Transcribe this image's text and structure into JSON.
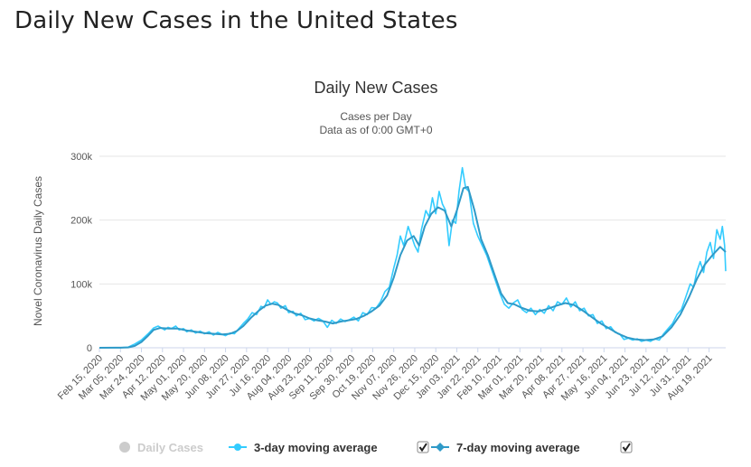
{
  "page": {
    "heading": "Daily New Cases in the United States"
  },
  "chart_data": {
    "type": "line",
    "title": "Daily New Cases",
    "subtitle_line1": "Cases per Day",
    "subtitle_line2": "Data as of 0:00 GMT+0",
    "ylabel": "Novel Coronavirus Daily Cases",
    "xlabel": "",
    "ylim": [
      0,
      300000
    ],
    "yticks": [
      0,
      100000,
      200000,
      300000
    ],
    "ytick_labels": [
      "0",
      "100k",
      "200k",
      "300k"
    ],
    "x_range": [
      "2020-02-15",
      "2021-09-03"
    ],
    "xtick_labels": [
      "Feb 15, 2020",
      "Mar 05, 2020",
      "Mar 24, 2020",
      "Apr 12, 2020",
      "May 01, 2020",
      "May 20, 2020",
      "Jun 08, 2020",
      "Jun 27, 2020",
      "Jul 16, 2020",
      "Aug 04, 2020",
      "Aug 23, 2020",
      "Sep 11, 2020",
      "Sep 30, 2020",
      "Oct 19, 2020",
      "Nov 07, 2020",
      "Nov 26, 2020",
      "Dec 15, 2020",
      "Jan 03, 2021",
      "Jan 22, 2021",
      "Feb 10, 2021",
      "Mar 01, 2021",
      "Mar 20, 2021",
      "Apr 08, 2021",
      "Apr 27, 2021",
      "May 16, 2021",
      "Jun 04, 2021",
      "Jun 23, 2021",
      "Jul 12, 2021",
      "Jul 31, 2021",
      "Aug 19, 2021"
    ],
    "grid": true,
    "legend_position": "bottom",
    "series": [
      {
        "name": "Daily Cases",
        "visible": false,
        "color": "#cccccc",
        "marker": "circle",
        "points": []
      },
      {
        "name": "3-day moving average",
        "visible": true,
        "checked": true,
        "color": "#33ccff",
        "marker": "circle",
        "points": [
          [
            "2020-02-15",
            0
          ],
          [
            "2020-03-05",
            200
          ],
          [
            "2020-03-12",
            1000
          ],
          [
            "2020-03-18",
            6000
          ],
          [
            "2020-03-24",
            12000
          ],
          [
            "2020-03-30",
            22000
          ],
          [
            "2020-04-04",
            31000
          ],
          [
            "2020-04-08",
            34000
          ],
          [
            "2020-04-11",
            31000
          ],
          [
            "2020-04-14",
            28000
          ],
          [
            "2020-04-17",
            32000
          ],
          [
            "2020-04-20",
            30000
          ],
          [
            "2020-04-24",
            34000
          ],
          [
            "2020-04-27",
            28000
          ],
          [
            "2020-05-01",
            30000
          ],
          [
            "2020-05-04",
            25000
          ],
          [
            "2020-05-08",
            28000
          ],
          [
            "2020-05-12",
            23000
          ],
          [
            "2020-05-16",
            26000
          ],
          [
            "2020-05-20",
            22000
          ],
          [
            "2020-05-24",
            25000
          ],
          [
            "2020-05-28",
            20000
          ],
          [
            "2020-06-01",
            24000
          ],
          [
            "2020-06-05",
            21000
          ],
          [
            "2020-06-08",
            19000
          ],
          [
            "2020-06-12",
            23000
          ],
          [
            "2020-06-16",
            22000
          ],
          [
            "2020-06-20",
            30000
          ],
          [
            "2020-06-24",
            38000
          ],
          [
            "2020-06-28",
            45000
          ],
          [
            "2020-07-02",
            55000
          ],
          [
            "2020-07-06",
            52000
          ],
          [
            "2020-07-10",
            65000
          ],
          [
            "2020-07-13",
            63000
          ],
          [
            "2020-07-16",
            75000
          ],
          [
            "2020-07-19",
            68000
          ],
          [
            "2020-07-22",
            72000
          ],
          [
            "2020-07-25",
            70000
          ],
          [
            "2020-07-28",
            62000
          ],
          [
            "2020-08-01",
            66000
          ],
          [
            "2020-08-04",
            55000
          ],
          [
            "2020-08-08",
            57000
          ],
          [
            "2020-08-11",
            50000
          ],
          [
            "2020-08-15",
            54000
          ],
          [
            "2020-08-19",
            44000
          ],
          [
            "2020-08-23",
            46000
          ],
          [
            "2020-08-27",
            42000
          ],
          [
            "2020-08-31",
            46000
          ],
          [
            "2020-09-04",
            42000
          ],
          [
            "2020-09-08",
            32000
          ],
          [
            "2020-09-12",
            43000
          ],
          [
            "2020-09-16",
            38000
          ],
          [
            "2020-09-20",
            45000
          ],
          [
            "2020-09-24",
            41000
          ],
          [
            "2020-09-28",
            44000
          ],
          [
            "2020-10-02",
            48000
          ],
          [
            "2020-10-06",
            42000
          ],
          [
            "2020-10-10",
            55000
          ],
          [
            "2020-10-14",
            52000
          ],
          [
            "2020-10-18",
            63000
          ],
          [
            "2020-10-22",
            62000
          ],
          [
            "2020-10-26",
            72000
          ],
          [
            "2020-10-30",
            88000
          ],
          [
            "2020-11-03",
            95000
          ],
          [
            "2020-11-07",
            125000
          ],
          [
            "2020-11-10",
            145000
          ],
          [
            "2020-11-13",
            175000
          ],
          [
            "2020-11-16",
            160000
          ],
          [
            "2020-11-20",
            190000
          ],
          [
            "2020-11-23",
            175000
          ],
          [
            "2020-11-26",
            160000
          ],
          [
            "2020-11-29",
            150000
          ],
          [
            "2020-12-02",
            185000
          ],
          [
            "2020-12-06",
            215000
          ],
          [
            "2020-12-09",
            205000
          ],
          [
            "2020-12-12",
            235000
          ],
          [
            "2020-12-15",
            210000
          ],
          [
            "2020-12-18",
            245000
          ],
          [
            "2020-12-21",
            225000
          ],
          [
            "2020-12-24",
            215000
          ],
          [
            "2020-12-27",
            160000
          ],
          [
            "2020-12-30",
            200000
          ],
          [
            "2021-01-02",
            195000
          ],
          [
            "2021-01-05",
            245000
          ],
          [
            "2021-01-08",
            282000
          ],
          [
            "2021-01-11",
            250000
          ],
          [
            "2021-01-14",
            245000
          ],
          [
            "2021-01-18",
            195000
          ],
          [
            "2021-01-22",
            175000
          ],
          [
            "2021-01-26",
            160000
          ],
          [
            "2021-01-30",
            145000
          ],
          [
            "2021-02-03",
            125000
          ],
          [
            "2021-02-07",
            105000
          ],
          [
            "2021-02-11",
            85000
          ],
          [
            "2021-02-15",
            68000
          ],
          [
            "2021-02-19",
            62000
          ],
          [
            "2021-02-23",
            70000
          ],
          [
            "2021-02-27",
            75000
          ],
          [
            "2021-03-03",
            60000
          ],
          [
            "2021-03-07",
            55000
          ],
          [
            "2021-03-11",
            62000
          ],
          [
            "2021-03-15",
            52000
          ],
          [
            "2021-03-19",
            60000
          ],
          [
            "2021-03-23",
            54000
          ],
          [
            "2021-03-27",
            66000
          ],
          [
            "2021-03-31",
            58000
          ],
          [
            "2021-04-04",
            72000
          ],
          [
            "2021-04-08",
            68000
          ],
          [
            "2021-04-12",
            78000
          ],
          [
            "2021-04-16",
            64000
          ],
          [
            "2021-04-20",
            72000
          ],
          [
            "2021-04-24",
            58000
          ],
          [
            "2021-04-28",
            62000
          ],
          [
            "2021-05-02",
            50000
          ],
          [
            "2021-05-06",
            52000
          ],
          [
            "2021-05-10",
            38000
          ],
          [
            "2021-05-14",
            42000
          ],
          [
            "2021-05-18",
            30000
          ],
          [
            "2021-05-22",
            33000
          ],
          [
            "2021-05-26",
            24000
          ],
          [
            "2021-05-30",
            22000
          ],
          [
            "2021-06-03",
            13000
          ],
          [
            "2021-06-07",
            15000
          ],
          [
            "2021-06-11",
            12000
          ],
          [
            "2021-06-15",
            14000
          ],
          [
            "2021-06-19",
            10000
          ],
          [
            "2021-06-23",
            12000
          ],
          [
            "2021-06-27",
            10000
          ],
          [
            "2021-07-01",
            14000
          ],
          [
            "2021-07-05",
            12000
          ],
          [
            "2021-07-09",
            22000
          ],
          [
            "2021-07-13",
            30000
          ],
          [
            "2021-07-17",
            38000
          ],
          [
            "2021-07-21",
            52000
          ],
          [
            "2021-07-25",
            60000
          ],
          [
            "2021-07-29",
            80000
          ],
          [
            "2021-08-02",
            100000
          ],
          [
            "2021-08-05",
            95000
          ],
          [
            "2021-08-08",
            120000
          ],
          [
            "2021-08-11",
            135000
          ],
          [
            "2021-08-14",
            118000
          ],
          [
            "2021-08-17",
            150000
          ],
          [
            "2021-08-20",
            165000
          ],
          [
            "2021-08-23",
            140000
          ],
          [
            "2021-08-26",
            185000
          ],
          [
            "2021-08-29",
            170000
          ],
          [
            "2021-08-31",
            190000
          ],
          [
            "2021-09-02",
            160000
          ],
          [
            "2021-09-03",
            120000
          ]
        ]
      },
      {
        "name": "7-day moving average",
        "visible": true,
        "checked": true,
        "color": "#2f9ac8",
        "marker": "diamond",
        "points": [
          [
            "2020-02-15",
            0
          ],
          [
            "2020-03-05",
            100
          ],
          [
            "2020-03-12",
            500
          ],
          [
            "2020-03-18",
            3000
          ],
          [
            "2020-03-24",
            9000
          ],
          [
            "2020-03-30",
            19000
          ],
          [
            "2020-04-04",
            28000
          ],
          [
            "2020-04-10",
            31000
          ],
          [
            "2020-04-18",
            30000
          ],
          [
            "2020-04-26",
            30000
          ],
          [
            "2020-05-04",
            27000
          ],
          [
            "2020-05-12",
            25000
          ],
          [
            "2020-05-20",
            23000
          ],
          [
            "2020-05-28",
            22000
          ],
          [
            "2020-06-05",
            21000
          ],
          [
            "2020-06-12",
            22000
          ],
          [
            "2020-06-18",
            26000
          ],
          [
            "2020-06-24",
            34000
          ],
          [
            "2020-07-01",
            47000
          ],
          [
            "2020-07-08",
            58000
          ],
          [
            "2020-07-14",
            66000
          ],
          [
            "2020-07-20",
            69000
          ],
          [
            "2020-07-26",
            67000
          ],
          [
            "2020-08-02",
            60000
          ],
          [
            "2020-08-09",
            54000
          ],
          [
            "2020-08-16",
            51000
          ],
          [
            "2020-08-23",
            46000
          ],
          [
            "2020-08-30",
            43000
          ],
          [
            "2020-09-06",
            41000
          ],
          [
            "2020-09-13",
            38000
          ],
          [
            "2020-09-20",
            41000
          ],
          [
            "2020-09-27",
            43000
          ],
          [
            "2020-10-04",
            45000
          ],
          [
            "2020-10-11",
            50000
          ],
          [
            "2020-10-18",
            57000
          ],
          [
            "2020-10-25",
            66000
          ],
          [
            "2020-11-01",
            82000
          ],
          [
            "2020-11-07",
            110000
          ],
          [
            "2020-11-13",
            145000
          ],
          [
            "2020-11-19",
            168000
          ],
          [
            "2020-11-25",
            175000
          ],
          [
            "2020-11-30",
            160000
          ],
          [
            "2020-12-05",
            190000
          ],
          [
            "2020-12-11",
            210000
          ],
          [
            "2020-12-17",
            220000
          ],
          [
            "2020-12-23",
            215000
          ],
          [
            "2020-12-29",
            190000
          ],
          [
            "2021-01-03",
            215000
          ],
          [
            "2021-01-09",
            250000
          ],
          [
            "2021-01-13",
            252000
          ],
          [
            "2021-01-19",
            215000
          ],
          [
            "2021-01-25",
            170000
          ],
          [
            "2021-01-31",
            145000
          ],
          [
            "2021-02-06",
            115000
          ],
          [
            "2021-02-12",
            85000
          ],
          [
            "2021-02-18",
            70000
          ],
          [
            "2021-02-24",
            68000
          ],
          [
            "2021-03-02",
            63000
          ],
          [
            "2021-03-10",
            58000
          ],
          [
            "2021-03-18",
            57000
          ],
          [
            "2021-03-26",
            61000
          ],
          [
            "2021-04-03",
            66000
          ],
          [
            "2021-04-11",
            70000
          ],
          [
            "2021-04-19",
            67000
          ],
          [
            "2021-04-27",
            58000
          ],
          [
            "2021-05-05",
            48000
          ],
          [
            "2021-05-13",
            38000
          ],
          [
            "2021-05-21",
            30000
          ],
          [
            "2021-05-29",
            22000
          ],
          [
            "2021-06-06",
            16000
          ],
          [
            "2021-06-14",
            13000
          ],
          [
            "2021-06-22",
            12000
          ],
          [
            "2021-06-30",
            13000
          ],
          [
            "2021-07-08",
            18000
          ],
          [
            "2021-07-16",
            32000
          ],
          [
            "2021-07-24",
            52000
          ],
          [
            "2021-08-01",
            80000
          ],
          [
            "2021-08-08",
            108000
          ],
          [
            "2021-08-15",
            130000
          ],
          [
            "2021-08-22",
            145000
          ],
          [
            "2021-08-29",
            158000
          ],
          [
            "2021-09-03",
            150000
          ]
        ]
      }
    ]
  }
}
